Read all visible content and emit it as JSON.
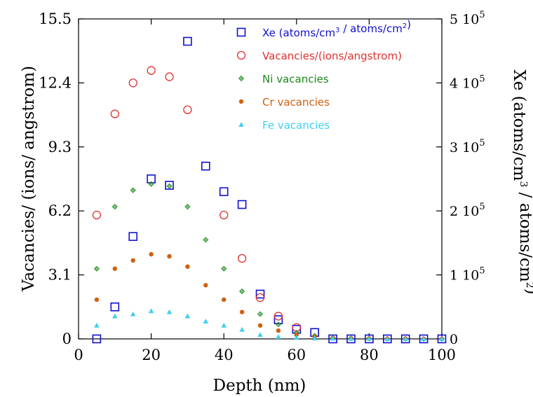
{
  "chart_data": {
    "type": "scatter",
    "xlabel": "Depth (nm)",
    "ylabel": "Vacancies/ (ions/ angstrom)",
    "y2label": "Xe (atoms/cm³ / atoms/cm²)",
    "xlim": [
      0,
      100
    ],
    "ylim": [
      0,
      15.5
    ],
    "y2lim": [
      0,
      500000
    ],
    "x_ticks": [
      "0",
      "20",
      "40",
      "60",
      "80",
      "100"
    ],
    "y_ticks": [
      "0",
      "3.1",
      "6.2",
      "9.3",
      "12.4",
      "15.5"
    ],
    "y2_ticks": [
      {
        "mant": "0",
        "exp": ""
      },
      {
        "mant": "1 10",
        "exp": "5"
      },
      {
        "mant": "2 10",
        "exp": "5"
      },
      {
        "mant": "3 10",
        "exp": "5"
      },
      {
        "mant": "4 10",
        "exp": "5"
      },
      {
        "mant": "5 10",
        "exp": "5"
      }
    ],
    "grid": false,
    "legend_position": "top-right",
    "series": [
      {
        "name": "Xe (atoms/cm³ / atoms/cm²)",
        "axis": "right",
        "marker": "square",
        "color": "#1010d0",
        "x": [
          5,
          10,
          15,
          20,
          25,
          30,
          35,
          40,
          45,
          50,
          55,
          60,
          65,
          70,
          75,
          80,
          85,
          90,
          95,
          100
        ],
        "y": [
          0,
          50000,
          160000,
          250000,
          240000,
          465000,
          270000,
          230000,
          210000,
          70000,
          30000,
          15000,
          10000,
          0,
          0,
          0,
          0,
          0,
          0,
          0
        ]
      },
      {
        "name": "Vacancies/(ions/angstrom)",
        "axis": "left",
        "marker": "circle",
        "color": "#e03030",
        "x": [
          5,
          10,
          15,
          20,
          25,
          30,
          40,
          45,
          50,
          55,
          60
        ],
        "y": [
          6.0,
          10.9,
          12.4,
          13.0,
          12.7,
          11.1,
          6.0,
          3.9,
          2.0,
          1.1,
          0.55
        ]
      },
      {
        "name": "Ni vacancies",
        "axis": "left",
        "marker": "diamond",
        "color": "#1a8a1a",
        "x": [
          5,
          10,
          15,
          20,
          25,
          30,
          35,
          40,
          45,
          50,
          55,
          60,
          65,
          70,
          75,
          80,
          85,
          90,
          95,
          100
        ],
        "y": [
          3.4,
          6.4,
          7.2,
          7.5,
          7.4,
          6.4,
          4.8,
          3.4,
          2.3,
          1.2,
          0.7,
          0.3,
          0.15,
          0.05,
          0.03,
          0.02,
          0.01,
          0.01,
          0.0,
          0.0
        ]
      },
      {
        "name": "Cr vacancies",
        "axis": "left",
        "marker": "dot",
        "color": "#d06010",
        "x": [
          5,
          10,
          15,
          20,
          25,
          30,
          35,
          40,
          45,
          50,
          55,
          60,
          65,
          70,
          75,
          80,
          85,
          90,
          95,
          100
        ],
        "y": [
          1.9,
          3.4,
          3.8,
          4.1,
          4.0,
          3.5,
          2.6,
          1.9,
          1.3,
          0.65,
          0.4,
          0.2,
          0.1,
          0.05,
          0.03,
          0.02,
          0.01,
          0.01,
          0.0,
          0.0
        ]
      },
      {
        "name": "Fe vacancies",
        "axis": "left",
        "marker": "triangle",
        "color": "#40d0f0",
        "x": [
          5,
          10,
          15,
          20,
          25,
          30,
          35,
          40,
          45,
          50,
          55,
          60,
          65,
          70,
          75,
          80,
          85,
          90,
          95,
          100
        ],
        "y": [
          0.65,
          1.1,
          1.2,
          1.35,
          1.3,
          1.1,
          0.85,
          0.65,
          0.45,
          0.2,
          0.1,
          0.06,
          0.03,
          0.02,
          0.01,
          0.01,
          0.0,
          0.0,
          0.0,
          0.0
        ]
      }
    ]
  }
}
